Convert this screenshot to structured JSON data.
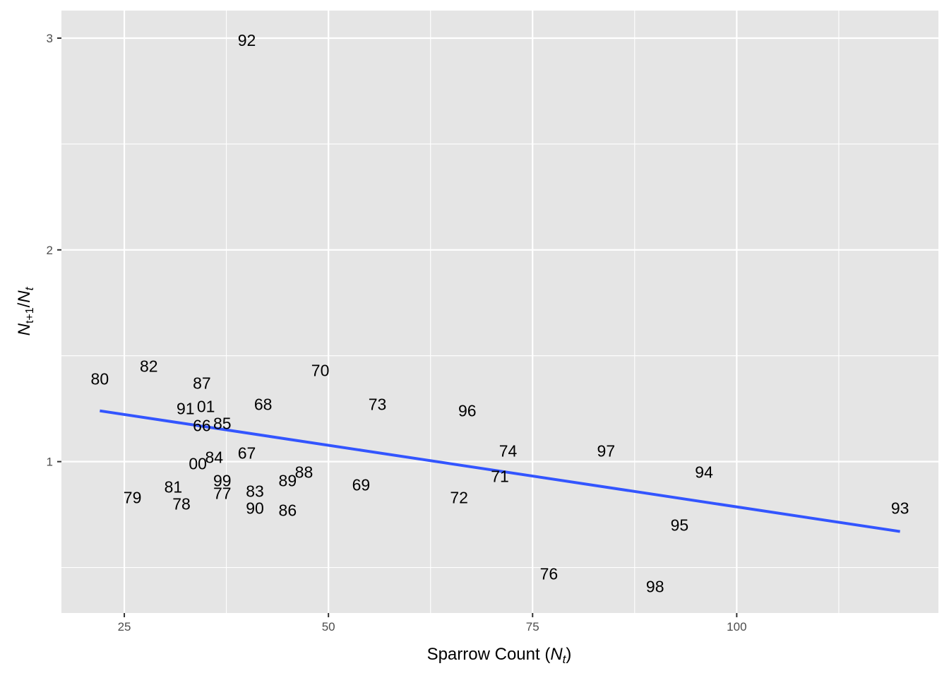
{
  "chart_data": {
    "type": "scatter",
    "xlabel": {
      "text": "Sparrow Count (",
      "symbol": "N",
      "sub": "t",
      "close": ")"
    },
    "ylabel": {
      "num_symbol": "N",
      "num_sub": "t+1",
      "slash": "/",
      "den_symbol": "N",
      "den_sub": "t"
    },
    "x_ticks": [
      25,
      50,
      75,
      100
    ],
    "y_ticks": [
      1,
      2,
      3
    ],
    "xlim": [
      17.3,
      124.7
    ],
    "ylim": [
      0.285,
      3.13
    ],
    "grid": true,
    "panel_color": "#e5e5e5",
    "grid_color": "#ffffff",
    "fit_color": "#3355ff",
    "points": [
      {
        "label": "66",
        "x": 34.5,
        "y": 1.17
      },
      {
        "label": "67",
        "x": 40.0,
        "y": 1.04
      },
      {
        "label": "68",
        "x": 42.0,
        "y": 1.27
      },
      {
        "label": "69",
        "x": 54.0,
        "y": 0.89
      },
      {
        "label": "70",
        "x": 49.0,
        "y": 1.43
      },
      {
        "label": "71",
        "x": 71.0,
        "y": 0.93
      },
      {
        "label": "72",
        "x": 66.0,
        "y": 0.83
      },
      {
        "label": "73",
        "x": 56.0,
        "y": 1.27
      },
      {
        "label": "74",
        "x": 72.0,
        "y": 1.05
      },
      {
        "label": "76",
        "x": 77.0,
        "y": 0.47
      },
      {
        "label": "77",
        "x": 37.0,
        "y": 0.85
      },
      {
        "label": "78",
        "x": 32.0,
        "y": 0.8
      },
      {
        "label": "79",
        "x": 26.0,
        "y": 0.83
      },
      {
        "label": "80",
        "x": 22.0,
        "y": 1.39
      },
      {
        "label": "81",
        "x": 31.0,
        "y": 0.88
      },
      {
        "label": "82",
        "x": 28.0,
        "y": 1.45
      },
      {
        "label": "83",
        "x": 41.0,
        "y": 0.86
      },
      {
        "label": "84",
        "x": 36.0,
        "y": 1.02
      },
      {
        "label": "85",
        "x": 37.0,
        "y": 1.18
      },
      {
        "label": "86",
        "x": 45.0,
        "y": 0.77
      },
      {
        "label": "87",
        "x": 34.5,
        "y": 1.37
      },
      {
        "label": "88",
        "x": 47.0,
        "y": 0.95
      },
      {
        "label": "89",
        "x": 45.0,
        "y": 0.91
      },
      {
        "label": "90",
        "x": 41.0,
        "y": 0.78
      },
      {
        "label": "91",
        "x": 32.5,
        "y": 1.25
      },
      {
        "label": "92",
        "x": 40.0,
        "y": 2.99
      },
      {
        "label": "93",
        "x": 120.0,
        "y": 0.78
      },
      {
        "label": "94",
        "x": 96.0,
        "y": 0.95
      },
      {
        "label": "95",
        "x": 93.0,
        "y": 0.7
      },
      {
        "label": "96",
        "x": 67.0,
        "y": 1.24
      },
      {
        "label": "97",
        "x": 84.0,
        "y": 1.05
      },
      {
        "label": "98",
        "x": 90.0,
        "y": 0.41
      },
      {
        "label": "99",
        "x": 37.0,
        "y": 0.91
      },
      {
        "label": "00",
        "x": 34.0,
        "y": 0.99
      },
      {
        "label": "01",
        "x": 35.0,
        "y": 1.26
      }
    ],
    "fit_line": {
      "x": [
        22.0,
        120.0
      ],
      "y": [
        1.24,
        0.67
      ]
    }
  }
}
